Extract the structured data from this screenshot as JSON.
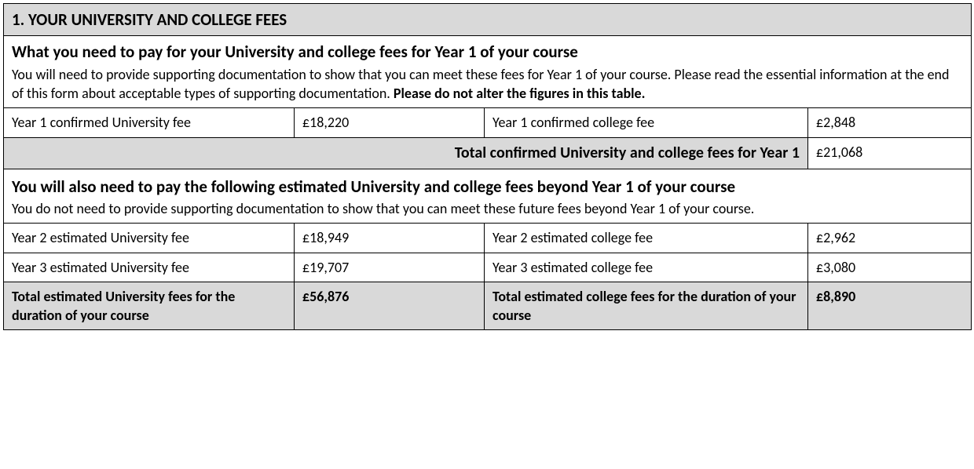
{
  "section": {
    "header": "1. YOUR UNIVERSITY AND COLLEGE FEES",
    "year1": {
      "subhead": "What you need to pay for your University and college fees for Year 1 of your course",
      "body_pre": "You will need to provide supporting documentation to show that you can meet these fees for Year 1 of your course. Please read the essential information at the end of this form about acceptable types of supporting documentation. ",
      "body_bold": "Please do not alter the figures in this table.",
      "uni_label": "Year 1 confirmed University fee",
      "uni_value": "£18,220",
      "col_label": "Year 1 confirmed college fee",
      "col_value": "£2,848",
      "total_label": "Total confirmed University and college fees for Year 1",
      "total_value": "£21,068"
    },
    "beyond": {
      "subhead": "You will also need to pay the following estimated University and college fees beyond Year 1 of your course",
      "body": "You do not need to provide supporting documentation to show that you can meet these future fees beyond Year 1 of your course.",
      "rows": [
        {
          "uni_label": "Year 2 estimated University fee",
          "uni_value": "£18,949",
          "col_label": "Year 2 estimated college fee",
          "col_value": "£2,962"
        },
        {
          "uni_label": "Year 3 estimated University fee",
          "uni_value": "£19,707",
          "col_label": "Year 3 estimated college fee",
          "col_value": "£3,080"
        }
      ],
      "totals": {
        "uni_label": "Total estimated University fees for the duration of your course",
        "uni_value": "£56,876",
        "col_label": "Total estimated college fees for the duration of your course",
        "col_value": "£8,890"
      }
    }
  }
}
